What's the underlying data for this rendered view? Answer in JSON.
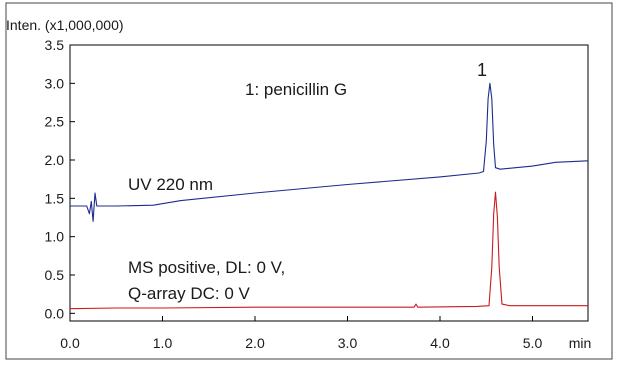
{
  "chart_data": {
    "type": "line",
    "ylabel": "Inten. (x1,000,000)",
    "xunit": "min",
    "xlim": [
      0.0,
      5.6
    ],
    "ylim": [
      -0.1,
      3.5
    ],
    "xticks": [
      "0.0",
      "1.0",
      "2.0",
      "3.0",
      "4.0",
      "5.0"
    ],
    "yticks": [
      "0.0",
      "0.5",
      "1.0",
      "1.5",
      "2.0",
      "2.5",
      "3.0",
      "3.5"
    ],
    "grid": false,
    "annotations": {
      "compound": "1: penicillin G",
      "uv_label": "UV 220 nm",
      "ms_label_line1": "MS positive, DL: 0 V,",
      "ms_label_line2": "Q-array DC: 0 V",
      "peak_number": "1"
    },
    "series": [
      {
        "name": "UV 220 nm",
        "color": "#1c2b8f",
        "points": [
          [
            0.0,
            1.4
          ],
          [
            0.18,
            1.4
          ],
          [
            0.21,
            1.3
          ],
          [
            0.23,
            1.46
          ],
          [
            0.25,
            1.2
          ],
          [
            0.27,
            1.57
          ],
          [
            0.29,
            1.4
          ],
          [
            0.5,
            1.4
          ],
          [
            0.9,
            1.41
          ],
          [
            1.2,
            1.47
          ],
          [
            2.0,
            1.57
          ],
          [
            3.0,
            1.68
          ],
          [
            4.0,
            1.78
          ],
          [
            4.42,
            1.83
          ],
          [
            4.47,
            1.85
          ],
          [
            4.5,
            2.25
          ],
          [
            4.52,
            2.8
          ],
          [
            4.54,
            3.0
          ],
          [
            4.56,
            2.8
          ],
          [
            4.58,
            2.2
          ],
          [
            4.6,
            1.9
          ],
          [
            4.65,
            1.88
          ],
          [
            5.0,
            1.92
          ],
          [
            5.25,
            1.97
          ],
          [
            5.6,
            1.99
          ]
        ]
      },
      {
        "name": "MS positive, DL: 0 V, Q-array DC: 0 V",
        "color": "#cc1a1a",
        "points": [
          [
            0.0,
            0.06
          ],
          [
            0.5,
            0.07
          ],
          [
            1.0,
            0.07
          ],
          [
            2.0,
            0.08
          ],
          [
            3.0,
            0.08
          ],
          [
            3.72,
            0.08
          ],
          [
            3.74,
            0.12
          ],
          [
            3.76,
            0.08
          ],
          [
            4.4,
            0.09
          ],
          [
            4.53,
            0.1
          ],
          [
            4.56,
            0.6
          ],
          [
            4.58,
            1.3
          ],
          [
            4.6,
            1.58
          ],
          [
            4.62,
            1.25
          ],
          [
            4.64,
            0.6
          ],
          [
            4.67,
            0.12
          ],
          [
            4.75,
            0.1
          ],
          [
            5.0,
            0.1
          ],
          [
            5.6,
            0.1
          ]
        ]
      }
    ]
  }
}
